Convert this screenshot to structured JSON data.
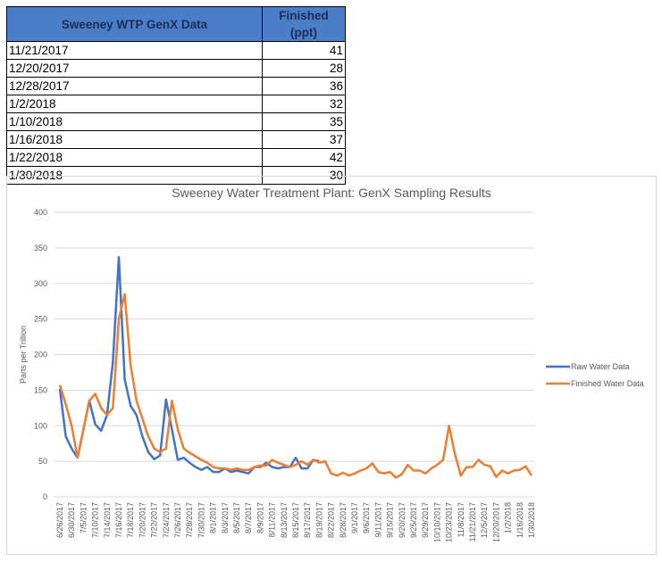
{
  "table": {
    "headers": [
      "Sweeney WTP GenX Data",
      "Finished (ppt)"
    ],
    "rows": [
      {
        "date": "11/21/2017",
        "value": "41"
      },
      {
        "date": "12/20/2017",
        "value": "28"
      },
      {
        "date": "12/28/2017",
        "value": "36"
      },
      {
        "date": "1/2/2018",
        "value": "32"
      },
      {
        "date": "1/10/2018",
        "value": "35"
      },
      {
        "date": "1/16/2018",
        "value": "37"
      },
      {
        "date": "1/22/2018",
        "value": "42"
      },
      {
        "date": "1/30/2018",
        "value": "30"
      }
    ]
  },
  "chart_data": {
    "type": "line",
    "title": "Sweeney Water Treatment Plant: GenX Sampling Results",
    "xlabel": "",
    "ylabel": "Parts per Trillion",
    "ylim": [
      0,
      400
    ],
    "yticks": [
      "0",
      "50",
      "100",
      "150",
      "200",
      "250",
      "300",
      "350",
      "400"
    ],
    "grid": true,
    "legend_position": "right",
    "x_tick_labels": [
      "6/26/2017",
      "6/30/2017",
      "7/5/2017",
      "7/10/2017",
      "7/14/2017",
      "7/16/2017",
      "7/18/2017",
      "7/20/2017",
      "7/22/2017",
      "7/24/2017",
      "7/26/2017",
      "7/28/2017",
      "7/30/2017",
      "8/1/2017",
      "8/3/2017",
      "8/5/2017",
      "8/7/2017",
      "8/9/2017",
      "8/11/2017",
      "8/13/2017",
      "8/15/2017",
      "8/17/2017",
      "8/19/2017",
      "8/22/2017",
      "8/28/2017",
      "9/1/2017",
      "9/6/2017",
      "9/11/2017",
      "9/15/2017",
      "9/20/2017",
      "9/25/2017",
      "9/29/2017",
      "10/10/2017",
      "10/23/2017",
      "11/8/2017",
      "11/21/2017",
      "12/5/2017",
      "12/20/2017",
      "1/2/2018",
      "1/16/2018",
      "1/30/2018"
    ],
    "point_count": 81,
    "series": [
      {
        "name": "Raw Water Data",
        "color": "#4472c4",
        "values": [
          152,
          85,
          68,
          55,
          95,
          135,
          102,
          93,
          115,
          190,
          337,
          165,
          128,
          115,
          85,
          63,
          53,
          58,
          137,
          95,
          52,
          55,
          48,
          42,
          38,
          42,
          35,
          35,
          40,
          35,
          37,
          35,
          33,
          42,
          42,
          48,
          42,
          40,
          42,
          42,
          55,
          40,
          40,
          52,
          50,
          null,
          null,
          null,
          null,
          null,
          null,
          null,
          null,
          null,
          null,
          null,
          null,
          null,
          null,
          null,
          null,
          null,
          null,
          null,
          null,
          null,
          null,
          null,
          null,
          null,
          null,
          null,
          null,
          null,
          null,
          null,
          null,
          null,
          null,
          null,
          null
        ]
      },
      {
        "name": "Finished Water Data",
        "color": "#ed7d31",
        "values": [
          157,
          130,
          100,
          55,
          95,
          135,
          145,
          125,
          115,
          125,
          250,
          285,
          185,
          135,
          110,
          85,
          68,
          63,
          68,
          135,
          95,
          68,
          62,
          57,
          52,
          48,
          42,
          40,
          40,
          38,
          40,
          38,
          38,
          42,
          44,
          44,
          52,
          48,
          45,
          42,
          45,
          50,
          45,
          52,
          48,
          50,
          33,
          30,
          34,
          30,
          33,
          37,
          40,
          47,
          35,
          33,
          35,
          27,
          32,
          45,
          37,
          37,
          33,
          40,
          45,
          52,
          100,
          60,
          30,
          42,
          42,
          52,
          45,
          43,
          28,
          37,
          33,
          37,
          38,
          43,
          30
        ]
      }
    ]
  }
}
